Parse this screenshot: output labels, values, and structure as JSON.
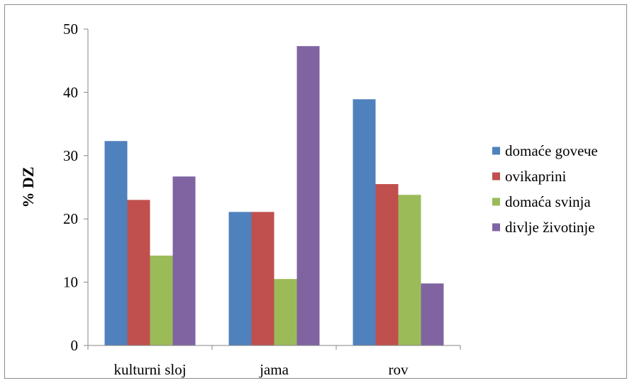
{
  "chart_data": {
    "type": "bar",
    "title": "",
    "xlabel": "",
    "ylabel": "% DZ",
    "ylim": [
      0,
      50
    ],
    "yticks": [
      0,
      10,
      20,
      30,
      40,
      50
    ],
    "grid": false,
    "legend_position": "right",
    "categories": [
      "kulturni sloj",
      "jama",
      "rov"
    ],
    "series": [
      {
        "name": "domaće govече",
        "color": "#4f81bd",
        "values": [
          32.3,
          21.1,
          38.9
        ]
      },
      {
        "name": "ovikaprini",
        "color": "#c0504d",
        "values": [
          23.0,
          21.1,
          25.5
        ]
      },
      {
        "name": "domaća svinja",
        "color": "#9bbb59",
        "values": [
          14.2,
          10.5,
          23.8
        ]
      },
      {
        "name": "divlje životinje",
        "color": "#8064a2",
        "values": [
          26.7,
          47.3,
          9.8
        ]
      }
    ]
  }
}
